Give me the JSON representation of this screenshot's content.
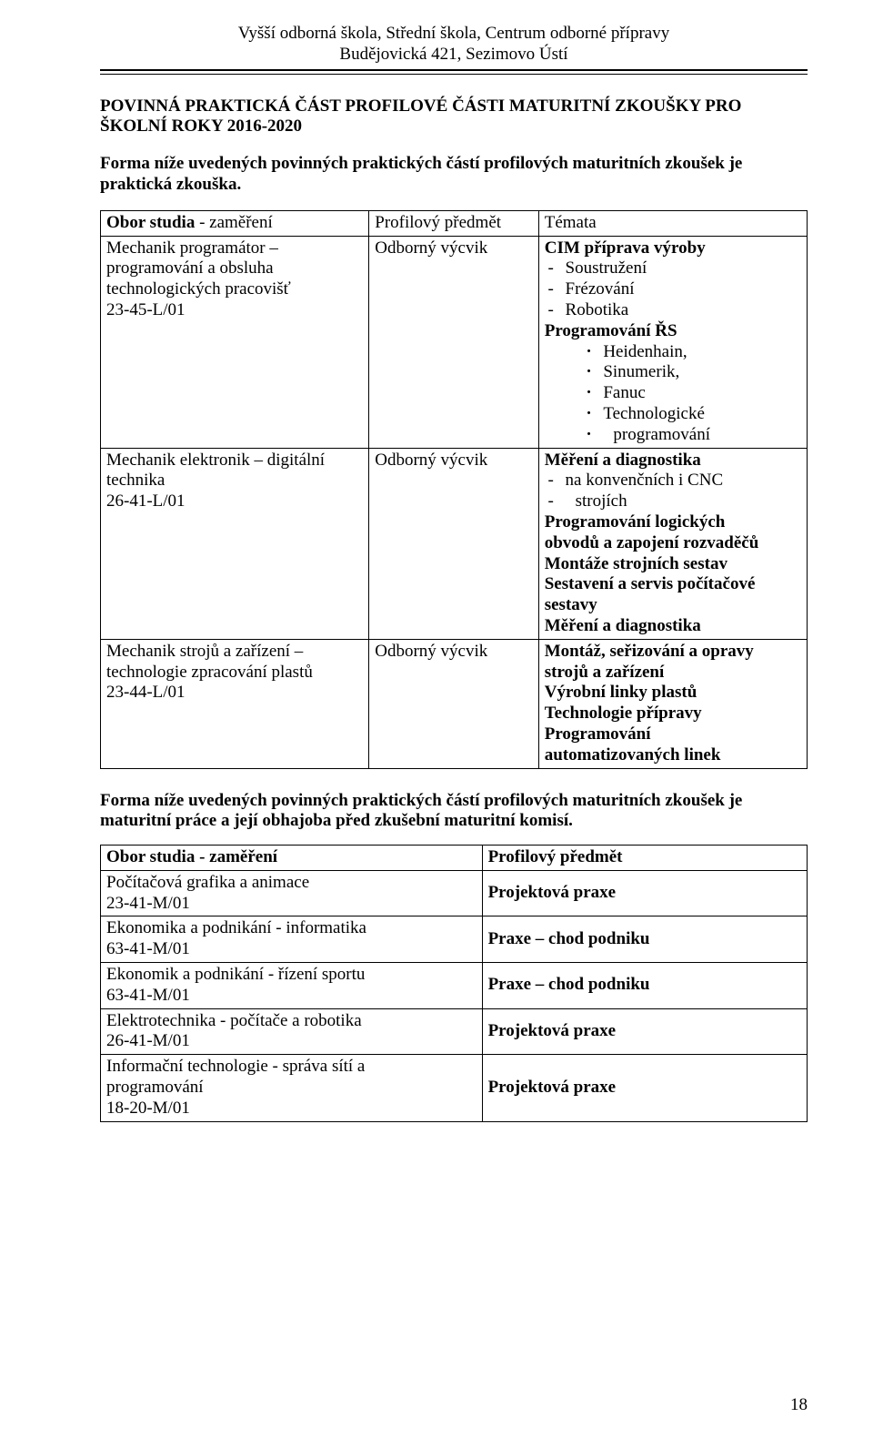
{
  "header": {
    "line1": "Vyšší odborná škola, Střední škola, Centrum odborné přípravy",
    "line2": "Budějovická 421, Sezimovo Ústí"
  },
  "title": {
    "line1": "POVINNÁ PRAKTICKÁ ČÁST PROFILOVÉ ČÁSTI MATURITNÍ ZKOUŠKY PRO",
    "line2": "ŠKOLNÍ ROKY 2016-2020"
  },
  "intro": {
    "line1": "Forma níže uvedených povinných praktických částí profilových maturitních zkoušek je",
    "line2": "praktická zkouška."
  },
  "table1": {
    "head": {
      "col1_prefix": "Obor studia",
      "col1_suffix": " - zaměření",
      "col2": "Profilový předmět",
      "col3": "Témata"
    },
    "rows": [
      {
        "obor": [
          "Mechanik programátor –",
          "programování a obsluha",
          "technologických pracovišť",
          "23-45-L/01"
        ],
        "predmet": "Odborný výcvik",
        "topics": {
          "lead_bold": "CIM",
          "lead_rest": " příprava výroby",
          "bullets": [
            "Soustružení",
            "Frézování",
            "Robotika"
          ],
          "sub_bold": "Programování ŘS",
          "dots": [
            "Heidenhain,",
            "Sinumerik,",
            "Fanuc",
            "Technologické",
            "programování"
          ]
        }
      },
      {
        "obor": [
          "Mechanik elektronik – digitální",
          "technika",
          "26-41-L/01"
        ],
        "predmet": "Odborný výcvik",
        "topics": {
          "lead_bold": "Měření a diagnostika",
          "bullets_2": [
            "na konvenčních i CNC",
            "strojích"
          ],
          "plain_bold_lines": [
            "Programování logických",
            "obvodů a zapojení rozvaděčů",
            "Montáže strojních sestav",
            "Sestavení a servis počítačové",
            "sestavy",
            "Měření a diagnostika"
          ]
        }
      },
      {
        "obor": [
          "Mechanik strojů a zařízení –",
          "technologie zpracování plastů",
          "23-44-L/01"
        ],
        "predmet": "Odborný výcvik",
        "topics": {
          "bold_pairs": [
            [
              "Montáž, seřizování a opravy",
              "strojů a zařízení"
            ],
            [
              "Výrobní linky plastů"
            ],
            [
              "Technologie přípravy"
            ],
            [
              "Programování",
              "automatizovaných linek"
            ]
          ]
        }
      }
    ]
  },
  "mid": {
    "line1": "Forma níže uvedených povinných praktických částí profilových maturitních zkoušek je",
    "line2": "maturitní práce a její obhajoba před zkušební maturitní komisí."
  },
  "table2": {
    "head": {
      "col1_bold": "Obor studia",
      "col1_rest": " - zaměření",
      "col2": "Profilový předmět"
    },
    "rows": [
      {
        "obor": [
          "Počítačová grafika a animace",
          "23-41-M/01"
        ],
        "predmet": "Projektová praxe"
      },
      {
        "obor": [
          "Ekonomika a podnikání - informatika",
          "63-41-M/01"
        ],
        "predmet": "Praxe – chod podniku"
      },
      {
        "obor": [
          "Ekonomik a podnikání - řízení sportu",
          "63-41-M/01"
        ],
        "predmet": "Praxe – chod podniku"
      },
      {
        "obor": [
          "Elektrotechnika - počítače a robotika",
          "26-41-M/01"
        ],
        "predmet": "Projektová praxe"
      },
      {
        "obor": [
          "Informační technologie - správa sítí a",
          "programování",
          "18-20-M/01"
        ],
        "predmet": "Projektová praxe"
      }
    ]
  },
  "pageNumber": "18"
}
